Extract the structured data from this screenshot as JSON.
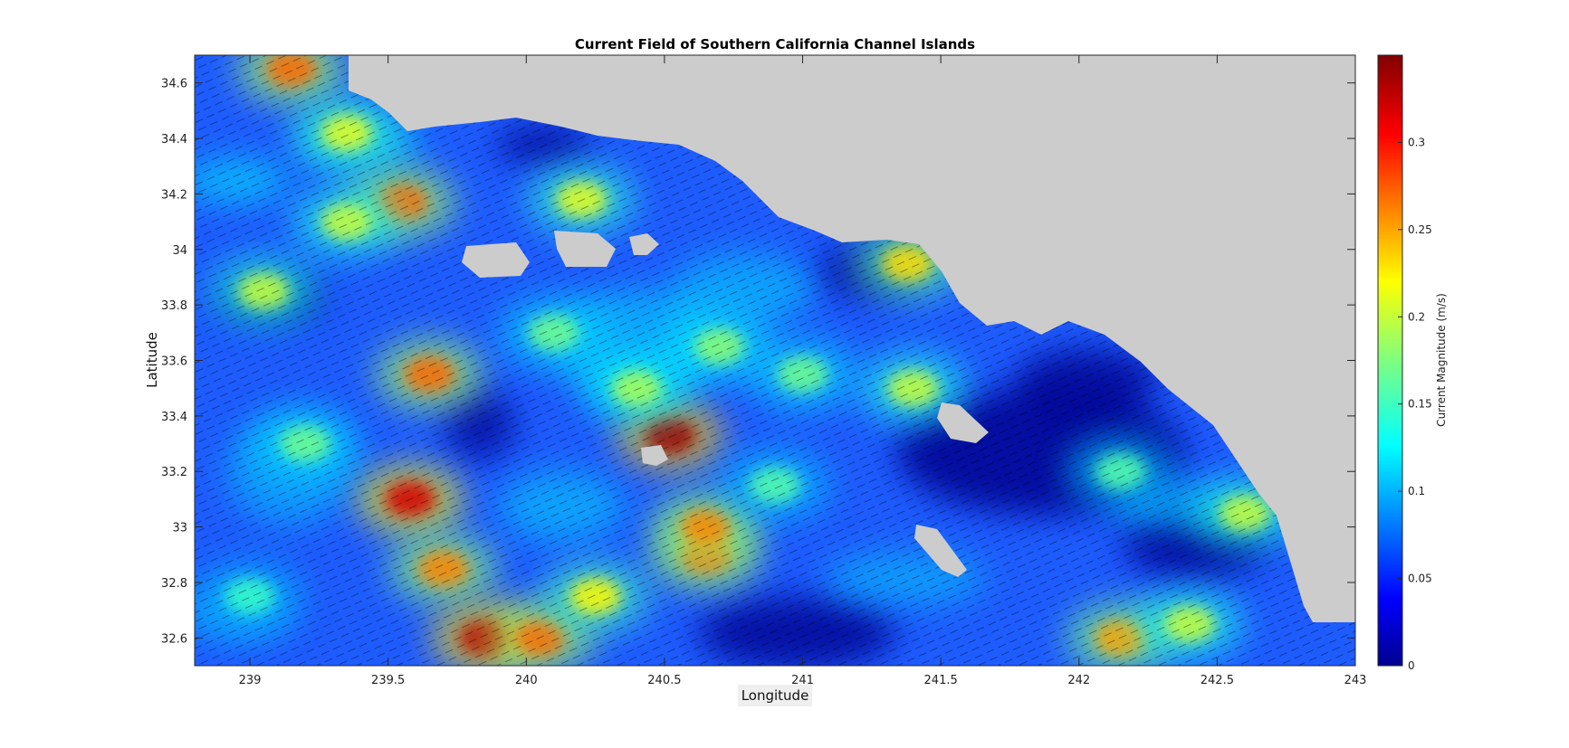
{
  "chart_data": {
    "type": "heatmap",
    "title": "Current Field of Southern California Channel Islands",
    "xlabel": "Longitude",
    "ylabel": "Latitude",
    "xlim": [
      238.8,
      243
    ],
    "ylim": [
      32.5,
      34.7
    ],
    "x_ticks": [
      239,
      239.5,
      240,
      240.5,
      241,
      241.5,
      242,
      242.5,
      243
    ],
    "x_tick_labels": [
      "239",
      "239.5",
      "240",
      "240.5",
      "241",
      "241.5",
      "242",
      "242.5",
      "243"
    ],
    "y_ticks": [
      32.6,
      32.8,
      33,
      33.2,
      33.4,
      33.6,
      33.8,
      34,
      34.2,
      34.4,
      34.6
    ],
    "y_tick_labels": [
      "32.6",
      "32.8",
      "33",
      "33.2",
      "33.4",
      "33.6",
      "33.8",
      "34",
      "34.2",
      "34.4",
      "34.6"
    ],
    "colorbar": {
      "label": "Current Magnitude (m/s)",
      "min": 0,
      "max": 0.35,
      "ticks": [
        0,
        0.05,
        0.1,
        0.15,
        0.2,
        0.25,
        0.3
      ],
      "tick_labels": [
        "0",
        "0.05",
        "0.1",
        "0.15",
        "0.2",
        "0.25",
        "0.3"
      ],
      "colormap": "jet"
    },
    "land_color": "#cccccc",
    "vectors": "quiver arrows overlaid showing current direction",
    "hotspots": [
      {
        "lon": 239.15,
        "lat": 34.65,
        "magnitude": 0.27
      },
      {
        "lon": 239.58,
        "lat": 33.1,
        "magnitude": 0.32
      },
      {
        "lon": 239.65,
        "lat": 33.55,
        "magnitude": 0.27
      },
      {
        "lon": 239.7,
        "lat": 32.85,
        "magnitude": 0.26
      },
      {
        "lon": 239.85,
        "lat": 32.6,
        "magnitude": 0.33
      },
      {
        "lon": 240.05,
        "lat": 32.6,
        "magnitude": 0.27
      },
      {
        "lon": 240.52,
        "lat": 33.33,
        "magnitude": 0.34
      },
      {
        "lon": 240.65,
        "lat": 32.9,
        "magnitude": 0.27
      },
      {
        "lon": 240.65,
        "lat": 33.0,
        "magnitude": 0.26
      },
      {
        "lon": 239.55,
        "lat": 34.17,
        "magnitude": 0.27
      },
      {
        "lon": 242.15,
        "lat": 32.6,
        "magnitude": 0.25
      },
      {
        "lon": 240.25,
        "lat": 32.75,
        "magnitude": 0.22
      },
      {
        "lon": 241.38,
        "lat": 33.95,
        "magnitude": 0.23
      },
      {
        "lon": 240.2,
        "lat": 34.18,
        "magnitude": 0.21
      },
      {
        "lon": 239.35,
        "lat": 34.1,
        "magnitude": 0.2
      },
      {
        "lon": 239.05,
        "lat": 33.85,
        "magnitude": 0.2
      },
      {
        "lon": 239.35,
        "lat": 34.42,
        "magnitude": 0.21
      },
      {
        "lon": 242.6,
        "lat": 33.05,
        "magnitude": 0.2
      },
      {
        "lon": 240.4,
        "lat": 33.5,
        "magnitude": 0.19
      },
      {
        "lon": 241.4,
        "lat": 33.5,
        "magnitude": 0.2
      },
      {
        "lon": 242.4,
        "lat": 32.65,
        "magnitude": 0.2
      },
      {
        "lon": 239.2,
        "lat": 33.3,
        "magnitude": 0.17
      },
      {
        "lon": 239.0,
        "lat": 32.75,
        "magnitude": 0.15
      },
      {
        "lon": 240.1,
        "lat": 33.7,
        "magnitude": 0.17
      },
      {
        "lon": 240.7,
        "lat": 33.65,
        "magnitude": 0.18
      },
      {
        "lon": 242.15,
        "lat": 33.2,
        "magnitude": 0.16
      },
      {
        "lon": 241.0,
        "lat": 33.55,
        "magnitude": 0.17
      },
      {
        "lon": 240.9,
        "lat": 33.15,
        "magnitude": 0.16
      }
    ]
  }
}
